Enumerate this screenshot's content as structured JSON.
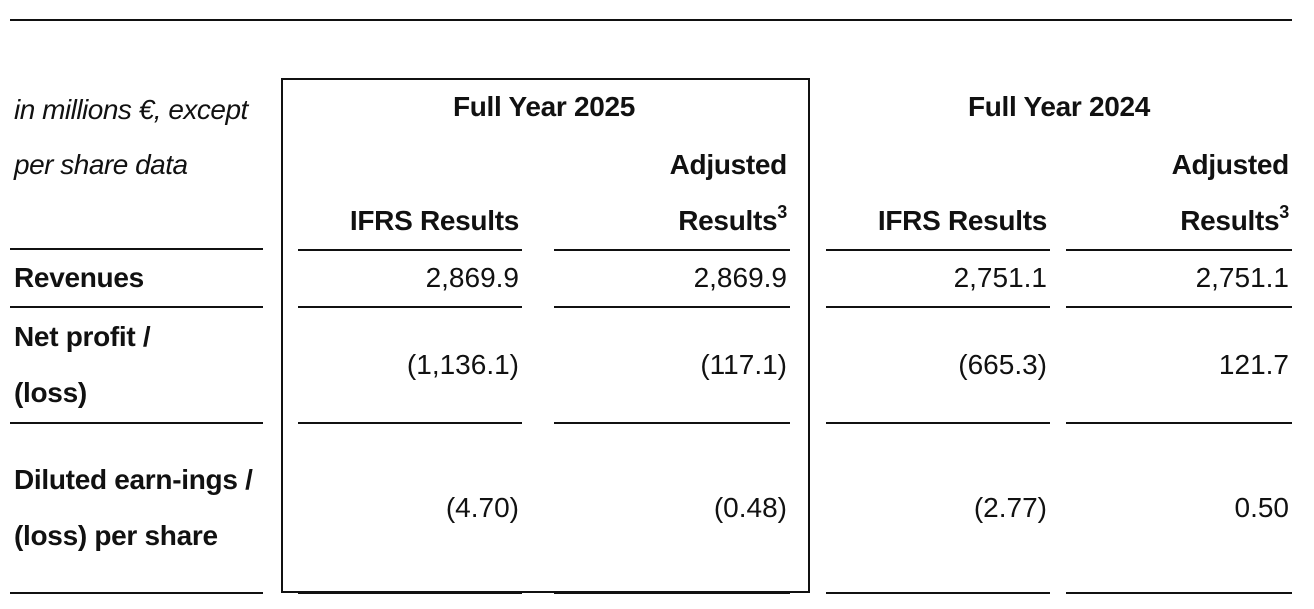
{
  "table": {
    "unit_label": "in millions €, except per share data",
    "groups": [
      "Full Year 2025",
      "Full Year 2024"
    ],
    "columns": [
      "IFRS Results",
      "Adjusted Results"
    ],
    "footnote_marker": "3",
    "rows": [
      {
        "label": "Revenues",
        "values": [
          "2,869.9",
          "2,869.9",
          "2,751.1",
          "2,751.1"
        ]
      },
      {
        "label": "Net profit / (loss)",
        "values": [
          "(1,136.1)",
          "(117.1)",
          "(665.3)",
          "121.7"
        ]
      },
      {
        "label": "Diluted earn-ings / (loss) per share",
        "values": [
          "(4.70)",
          "(0.48)",
          "(2.77)",
          "0.50"
        ]
      }
    ]
  }
}
